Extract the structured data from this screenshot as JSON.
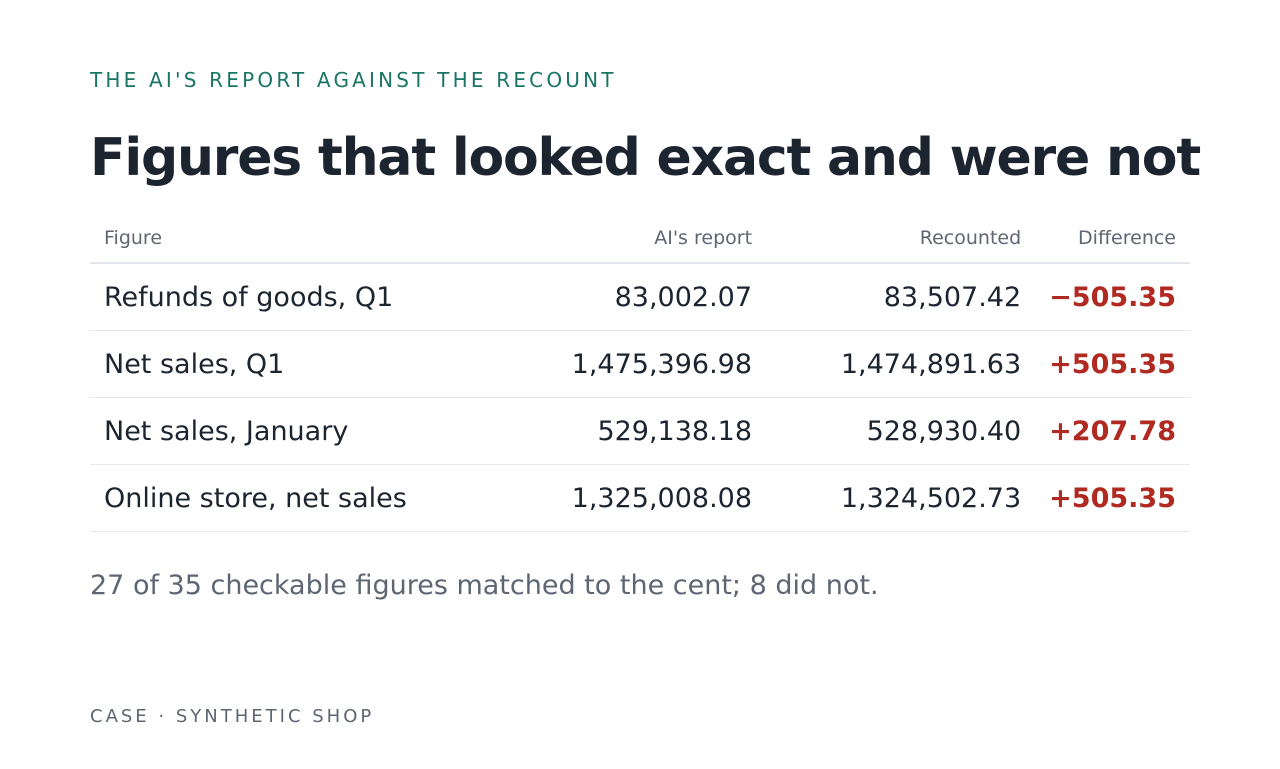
{
  "header": {
    "eyebrow": "THE AI'S REPORT AGAINST THE RECOUNT",
    "title": "Figures that looked exact and were not"
  },
  "table": {
    "columns": {
      "figure": "Figure",
      "report": "AI's report",
      "recount": "Recounted",
      "difference": "Difference"
    },
    "rows": [
      {
        "figure": "Refunds of goods, Q1",
        "report": "83,002.07",
        "recount": "83,507.42",
        "difference": "−505.35"
      },
      {
        "figure": "Net sales, Q1",
        "report": "1,475,396.98",
        "recount": "1,474,891.63",
        "difference": "+505.35"
      },
      {
        "figure": "Net sales, January",
        "report": "529,138.18",
        "recount": "528,930.40",
        "difference": "+207.78"
      },
      {
        "figure": "Online store, net sales",
        "report": "1,325,008.08",
        "recount": "1,324,502.73",
        "difference": "+505.35"
      }
    ]
  },
  "summary": "27 of 35 checkable figures matched to the cent; 8 did not.",
  "footer": "CASE · SYNTHETIC SHOP",
  "colors": {
    "accent": "#1a7565",
    "difference": "#b02a22",
    "text": "#1c2430",
    "muted": "#5d6672"
  }
}
